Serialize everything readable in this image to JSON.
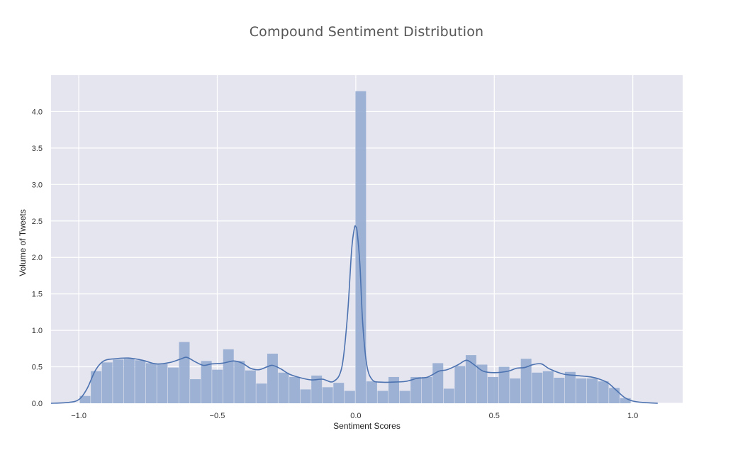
{
  "chart_data": {
    "type": "bar",
    "title": "Compound Sentiment Distribution",
    "xlabel": "Sentiment Scores",
    "ylabel": "Volume of Tweets",
    "xlim": [
      -1.1,
      1.18
    ],
    "ylim": [
      0,
      4.5
    ],
    "xticks": [
      -1.0,
      -0.5,
      0.0,
      0.5,
      1.0
    ],
    "xtick_labels": [
      "−1.0",
      "−0.5",
      "0.0",
      "0.5",
      "1.0"
    ],
    "yticks": [
      0.0,
      0.5,
      1.0,
      1.5,
      2.0,
      2.5,
      3.0,
      3.5,
      4.0
    ],
    "ytick_labels": [
      "0.0",
      "0.5",
      "1.0",
      "1.5",
      "2.0",
      "2.5",
      "3.0",
      "3.5",
      "4.0"
    ],
    "grid": true,
    "bin_start": -0.9962,
    "bin_width": 0.0398,
    "values": [
      0.1,
      0.44,
      0.56,
      0.6,
      0.61,
      0.59,
      0.55,
      0.54,
      0.49,
      0.84,
      0.33,
      0.58,
      0.46,
      0.74,
      0.58,
      0.45,
      0.27,
      0.68,
      0.42,
      0.36,
      0.19,
      0.38,
      0.22,
      0.28,
      0.17,
      4.28,
      0.3,
      0.17,
      0.36,
      0.17,
      0.36,
      0.36,
      0.55,
      0.2,
      0.51,
      0.66,
      0.53,
      0.36,
      0.5,
      0.34,
      0.61,
      0.42,
      0.44,
      0.35,
      0.43,
      0.34,
      0.34,
      0.3,
      0.21,
      0.07
    ],
    "kde": {
      "x": [
        -1.1,
        -1.04,
        -1.0,
        -0.97,
        -0.94,
        -0.91,
        -0.87,
        -0.82,
        -0.77,
        -0.72,
        -0.67,
        -0.63,
        -0.61,
        -0.58,
        -0.55,
        -0.52,
        -0.48,
        -0.44,
        -0.41,
        -0.38,
        -0.35,
        -0.32,
        -0.3,
        -0.27,
        -0.24,
        -0.2,
        -0.16,
        -0.12,
        -0.08,
        -0.05,
        -0.03,
        -0.015,
        -0.005,
        0.0,
        0.005,
        0.015,
        0.025,
        0.04,
        0.06,
        0.09,
        0.13,
        0.18,
        0.22,
        0.26,
        0.3,
        0.33,
        0.37,
        0.4,
        0.43,
        0.46,
        0.5,
        0.55,
        0.58,
        0.61,
        0.64,
        0.67,
        0.7,
        0.75,
        0.8,
        0.85,
        0.88,
        0.91,
        0.94,
        0.97,
        1.0,
        1.04,
        1.09
      ],
      "y": [
        0.0,
        0.01,
        0.05,
        0.2,
        0.45,
        0.58,
        0.61,
        0.62,
        0.59,
        0.54,
        0.56,
        0.61,
        0.63,
        0.57,
        0.52,
        0.54,
        0.55,
        0.58,
        0.55,
        0.48,
        0.46,
        0.5,
        0.52,
        0.47,
        0.4,
        0.35,
        0.32,
        0.33,
        0.3,
        0.5,
        1.2,
        2.1,
        2.4,
        2.42,
        2.35,
        1.9,
        1.1,
        0.52,
        0.32,
        0.29,
        0.29,
        0.3,
        0.34,
        0.36,
        0.44,
        0.46,
        0.53,
        0.59,
        0.52,
        0.44,
        0.42,
        0.44,
        0.48,
        0.49,
        0.53,
        0.54,
        0.47,
        0.4,
        0.38,
        0.36,
        0.33,
        0.28,
        0.18,
        0.08,
        0.03,
        0.01,
        0.0
      ]
    },
    "colors": {
      "bar": "#8fa8cf",
      "line": "#4c72b0",
      "plot_bg": "#e5e5ef",
      "grid": "#ffffff"
    }
  }
}
